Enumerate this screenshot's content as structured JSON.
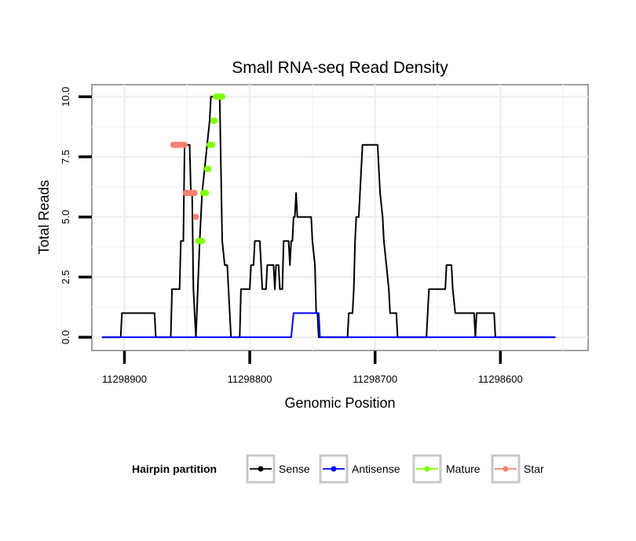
{
  "chart_data": {
    "type": "line",
    "title": "Small RNA-seq Read Density",
    "xlabel": "Genomic Position",
    "ylabel": "Total Reads",
    "xlim": [
      11298926,
      11298530
    ],
    "ylim": [
      -0.55,
      10.5
    ],
    "x_reversed": true,
    "grid": true,
    "x_ticks": [
      {
        "value": 11298900,
        "label": "11298900"
      },
      {
        "value": 11298800,
        "label": "11298800"
      },
      {
        "value": 11298700,
        "label": "11298700"
      },
      {
        "value": 11298600,
        "label": "11298600"
      }
    ],
    "y_ticks": [
      {
        "value": 0,
        "label": "0.0"
      },
      {
        "value": 2.5,
        "label": "2.5"
      },
      {
        "value": 5,
        "label": "5.0"
      },
      {
        "value": 7.5,
        "label": "7.5"
      },
      {
        "value": 10,
        "label": "10.0"
      }
    ],
    "legend": {
      "title": "Hairpin partition",
      "position": "bottom",
      "entries": [
        {
          "name": "Sense",
          "color": "#000000"
        },
        {
          "name": "Antisense",
          "color": "#0000ff"
        },
        {
          "name": "Mature",
          "color": "#7fff00"
        },
        {
          "name": "Star",
          "color": "#fa8072"
        }
      ]
    },
    "series": [
      {
        "name": "Sense",
        "color": "#000000",
        "points": [
          [
            11298918,
            0
          ],
          [
            11298903,
            0
          ],
          [
            11298902,
            1
          ],
          [
            11298876,
            1
          ],
          [
            11298875,
            0
          ],
          [
            11298863,
            0
          ],
          [
            11298862,
            2
          ],
          [
            11298856,
            2
          ],
          [
            11298855,
            4
          ],
          [
            11298853,
            4
          ],
          [
            11298852,
            8
          ],
          [
            11298848,
            8
          ],
          [
            11298847,
            6
          ],
          [
            11298846,
            6
          ],
          [
            11298845,
            2
          ],
          [
            11298843,
            0
          ],
          [
            11298840,
            4
          ],
          [
            11298838,
            6
          ],
          [
            11298836,
            7
          ],
          [
            11298834,
            8
          ],
          [
            11298832,
            9
          ],
          [
            11298831,
            10
          ],
          [
            11298824,
            10
          ],
          [
            11298823,
            7
          ],
          [
            11298822,
            4
          ],
          [
            11298820,
            3
          ],
          [
            11298818,
            3
          ],
          [
            11298817,
            2
          ],
          [
            11298816,
            1
          ],
          [
            11298815,
            0
          ],
          [
            11298808,
            0
          ],
          [
            11298807,
            2
          ],
          [
            11298800,
            2
          ],
          [
            11298799,
            3
          ],
          [
            11298797,
            3
          ],
          [
            11298796,
            4
          ],
          [
            11298792,
            4
          ],
          [
            11298791,
            3
          ],
          [
            11298790,
            2
          ],
          [
            11298787,
            2
          ],
          [
            11298786,
            3
          ],
          [
            11298781,
            3
          ],
          [
            11298780,
            2
          ],
          [
            11298779,
            3
          ],
          [
            11298777,
            3
          ],
          [
            11298776,
            2
          ],
          [
            11298774,
            2
          ],
          [
            11298773,
            4
          ],
          [
            11298769,
            4
          ],
          [
            11298768,
            3
          ],
          [
            11298767,
            4
          ],
          [
            11298766,
            4
          ],
          [
            11298765,
            5
          ],
          [
            11298764,
            5
          ],
          [
            11298763,
            6
          ],
          [
            11298762,
            5
          ],
          [
            11298751,
            5
          ],
          [
            11298750,
            4
          ],
          [
            11298748,
            3
          ],
          [
            11298747,
            1
          ],
          [
            11298746,
            1
          ],
          [
            11298745,
            0
          ],
          [
            11298722,
            0
          ],
          [
            11298721,
            1
          ],
          [
            11298718,
            1
          ],
          [
            11298717,
            2
          ],
          [
            11298716,
            4
          ],
          [
            11298715,
            5
          ],
          [
            11298713,
            5
          ],
          [
            11298712,
            6
          ],
          [
            11298711,
            7
          ],
          [
            11298710,
            8
          ],
          [
            11298698,
            8
          ],
          [
            11298697,
            7
          ],
          [
            11298696,
            6
          ],
          [
            11298694,
            5
          ],
          [
            11298693,
            4
          ],
          [
            11298691,
            3
          ],
          [
            11298689,
            2
          ],
          [
            11298688,
            1
          ],
          [
            11298683,
            1
          ],
          [
            11298682,
            0
          ],
          [
            11298659,
            0
          ],
          [
            11298658,
            1
          ],
          [
            11298657,
            2
          ],
          [
            11298644,
            2
          ],
          [
            11298643,
            3
          ],
          [
            11298639,
            3
          ],
          [
            11298638,
            2
          ],
          [
            11298636,
            1
          ],
          [
            11298621,
            1
          ],
          [
            11298620,
            0
          ],
          [
            11298619,
            1
          ],
          [
            11298605,
            1
          ],
          [
            11298604,
            0
          ],
          [
            11298600,
            0
          ],
          [
            11298589,
            0
          ],
          [
            11298573,
            0
          ],
          [
            11298560,
            0
          ],
          [
            11298556,
            0
          ]
        ]
      },
      {
        "name": "Antisense",
        "color": "#0000ff",
        "points": [
          [
            11298918,
            0
          ],
          [
            11298767,
            0
          ],
          [
            11298765,
            1
          ],
          [
            11298745,
            1
          ],
          [
            11298744,
            0
          ],
          [
            11298556,
            0
          ]
        ]
      },
      {
        "name": "Mature",
        "color": "#7fff00",
        "points": [
          [
            11298841,
            4
          ],
          [
            11298840,
            4
          ],
          [
            11298839,
            4
          ],
          [
            11298838,
            4
          ],
          [
            11298837,
            6
          ],
          [
            11298836,
            6
          ],
          [
            11298835,
            6
          ],
          [
            11298834,
            7
          ],
          [
            11298833,
            7
          ],
          [
            11298832,
            8
          ],
          [
            11298831,
            8
          ],
          [
            11298830,
            8
          ],
          [
            11298829,
            9
          ],
          [
            11298828,
            9
          ],
          [
            11298827,
            10
          ],
          [
            11298826,
            10
          ],
          [
            11298825,
            10
          ],
          [
            11298824,
            10
          ],
          [
            11298823,
            10
          ],
          [
            11298822,
            10
          ]
        ]
      },
      {
        "name": "Star",
        "color": "#fa8072",
        "points": [
          [
            11298861,
            8
          ],
          [
            11298860,
            8
          ],
          [
            11298859,
            8
          ],
          [
            11298858,
            8
          ],
          [
            11298857,
            8
          ],
          [
            11298856,
            8
          ],
          [
            11298855,
            8
          ],
          [
            11298854,
            8
          ],
          [
            11298853,
            8
          ],
          [
            11298852,
            8
          ],
          [
            11298851,
            6
          ],
          [
            11298850,
            6
          ],
          [
            11298849,
            6
          ],
          [
            11298848,
            6
          ],
          [
            11298847,
            6
          ],
          [
            11298846,
            6
          ],
          [
            11298845,
            6
          ],
          [
            11298844,
            6
          ],
          [
            11298843,
            5
          ]
        ]
      }
    ]
  }
}
